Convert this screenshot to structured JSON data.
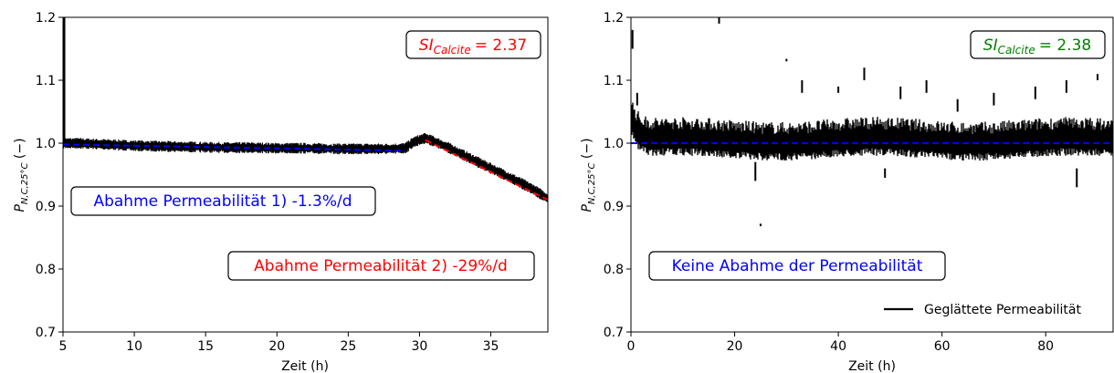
{
  "chart_data": [
    {
      "type": "line",
      "xlabel": "Zeit (h)",
      "ylabel": "P_{N,C,25°C} (−)",
      "ylim": [
        0.7,
        1.2
      ],
      "xlim": [
        5,
        39
      ],
      "xticks": [
        5,
        10,
        15,
        20,
        25,
        30,
        35
      ],
      "yticks": [
        0.7,
        0.8,
        0.9,
        1.0,
        1.1,
        1.2
      ],
      "series": [
        {
          "color": "#000000",
          "x": [
            5,
            6,
            8,
            10,
            12,
            14,
            16,
            18,
            20,
            22,
            24,
            26,
            28,
            29,
            29.6,
            30.4,
            31,
            32,
            33,
            34,
            35,
            36,
            37,
            38,
            39
          ],
          "y": [
            1.0,
            1.0,
            0.998,
            0.996,
            0.995,
            0.994,
            0.993,
            0.993,
            0.992,
            0.992,
            0.991,
            0.991,
            0.991,
            0.992,
            1.002,
            1.008,
            1.003,
            0.993,
            0.982,
            0.971,
            0.96,
            0.949,
            0.938,
            0.926,
            0.912
          ]
        },
        {
          "color": "#0000ff",
          "dashed": true,
          "x": [
            5,
            29
          ],
          "y": [
            0.998,
            0.988
          ]
        },
        {
          "color": "#ff0000",
          "dashed": true,
          "x": [
            30.4,
            39
          ],
          "y": [
            1.005,
            0.91
          ]
        }
      ],
      "si": {
        "label": "SI",
        "sub": "Calcite",
        "value": "= 2.37",
        "color": "#ff0000"
      },
      "annotations": [
        {
          "text": "Abahme Permeabilität 1) -1.3%/d",
          "color": "#0000ff"
        },
        {
          "text": "Abahme Permeabilität 2) -29%/d",
          "color": "#ff0000"
        }
      ]
    },
    {
      "type": "line",
      "xlabel": "Zeit (h)",
      "ylabel": "P_{N,C,25°C} (−)",
      "ylim": [
        0.7,
        1.2
      ],
      "xlim": [
        0,
        93
      ],
      "xticks": [
        0,
        20,
        40,
        60,
        80
      ],
      "yticks": [
        0.7,
        0.8,
        0.9,
        1.0,
        1.1,
        1.2
      ],
      "series": [
        {
          "name": "Geglättete Permeabilität",
          "color": "#000000",
          "band": true
        },
        {
          "color": "#0000ff",
          "dashed": true,
          "x": [
            0,
            93
          ],
          "y": [
            1.0,
            1.0
          ]
        }
      ],
      "si": {
        "label": "SI",
        "sub": "Calcite",
        "value": "= 2.38",
        "color": "#008000"
      },
      "annotations": [
        {
          "text": "Keine Abahme der Permeabilität",
          "color": "#0000ff"
        }
      ],
      "legend": {
        "position": "bottom-right"
      }
    }
  ]
}
